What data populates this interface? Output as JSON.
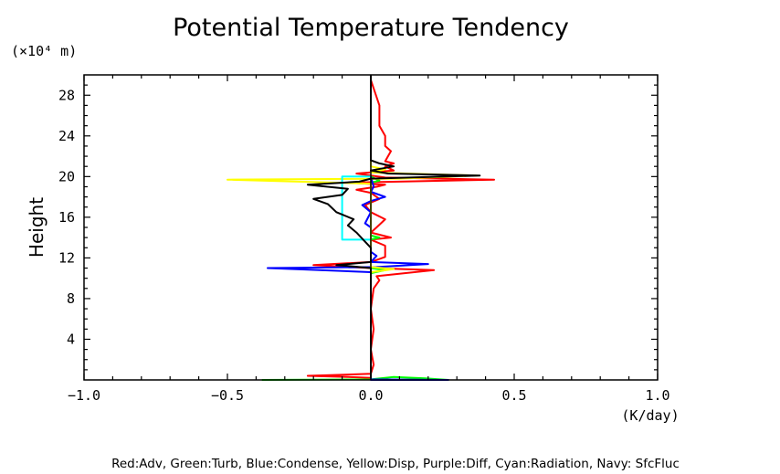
{
  "chart_data": {
    "type": "line",
    "title": "Potential Temperature Tendency",
    "xlabel": "(K/day)",
    "ylabel": "Height",
    "yunit": "(×10⁴ m)",
    "xlim": [
      -1.0,
      1.0
    ],
    "ylim": [
      0,
      30
    ],
    "xticks": [
      -1.0,
      -0.5,
      0.0,
      0.5,
      1.0
    ],
    "xtick_labels": [
      "−1.0",
      "−0.5",
      "0.0",
      "0.5",
      "1.0"
    ],
    "yticks": [
      4,
      8,
      12,
      16,
      20,
      24,
      28
    ],
    "ytick_labels": [
      "4",
      "8",
      "12",
      "16",
      "20",
      "24",
      "28"
    ],
    "legend_text": "Red:Adv, Green:Turb, Blue:Condense, Yellow:Disp, Purple:Diff, Cyan:Radiation, Navy: SfcFluc",
    "series": [
      {
        "color": "#ff0000",
        "points": [
          [
            0.0,
            0.2
          ],
          [
            -0.08,
            0.3
          ],
          [
            -0.22,
            0.4
          ],
          [
            0.0,
            0.6
          ],
          [
            0.01,
            1.5
          ],
          [
            0.0,
            3
          ],
          [
            0.01,
            5
          ],
          [
            0.0,
            7
          ],
          [
            0.01,
            9
          ],
          [
            0.03,
            9.8
          ],
          [
            0.02,
            10.2
          ],
          [
            0.22,
            10.8
          ],
          [
            0.0,
            11
          ],
          [
            -0.2,
            11.3
          ],
          [
            0.0,
            11.6
          ],
          [
            0.05,
            12.1
          ],
          [
            0.05,
            13.2
          ],
          [
            0.0,
            13.8
          ],
          [
            0.07,
            14.0
          ],
          [
            0.0,
            14.5
          ],
          [
            0.02,
            15
          ],
          [
            0.05,
            15.8
          ],
          [
            0.0,
            16.5
          ],
          [
            -0.02,
            17.2
          ],
          [
            0.03,
            17.8
          ],
          [
            0.0,
            18.4
          ],
          [
            -0.05,
            18.7
          ],
          [
            0.02,
            19.0
          ],
          [
            0.05,
            19.2
          ],
          [
            -0.08,
            19.4
          ],
          [
            0.43,
            19.7
          ],
          [
            0.05,
            19.9
          ],
          [
            -0.05,
            20.3
          ],
          [
            0.08,
            20.6
          ],
          [
            0.05,
            21.0
          ],
          [
            0.08,
            21.3
          ],
          [
            0.05,
            21.5
          ],
          [
            0.06,
            22.0
          ],
          [
            0.07,
            22.5
          ],
          [
            0.05,
            23
          ],
          [
            0.05,
            24
          ],
          [
            0.03,
            25
          ],
          [
            0.03,
            27
          ],
          [
            0.0,
            29.5
          ]
        ]
      },
      {
        "color": "#00ff00",
        "points": [
          [
            -0.38,
            0.0
          ],
          [
            0.0,
            0.05
          ],
          [
            0.08,
            0.3
          ],
          [
            0.19,
            0.15
          ],
          [
            0.27,
            0.0
          ],
          [
            0.0,
            0.05
          ],
          [
            0.0,
            10.5
          ],
          [
            0.05,
            10.8
          ],
          [
            0.0,
            11.0
          ],
          [
            0.0,
            13.8
          ],
          [
            0.03,
            14.0
          ],
          [
            0.0,
            14.2
          ],
          [
            0.0,
            19.4
          ],
          [
            0.03,
            19.6
          ],
          [
            0.0,
            20.0
          ]
        ]
      },
      {
        "color": "#0000ff",
        "points": [
          [
            0.0,
            0.05
          ],
          [
            0.27,
            0.0
          ],
          [
            0.0,
            0.0
          ],
          [
            0.0,
            10.6
          ],
          [
            -0.36,
            11.0
          ],
          [
            0.02,
            11.1
          ],
          [
            0.2,
            11.4
          ],
          [
            0.0,
            11.6
          ],
          [
            0.02,
            12.2
          ],
          [
            0.0,
            12.6
          ],
          [
            0.0,
            15.0
          ],
          [
            -0.02,
            15.4
          ],
          [
            0.0,
            16.5
          ],
          [
            -0.03,
            17.2
          ],
          [
            0.0,
            17.6
          ],
          [
            0.05,
            18.0
          ],
          [
            0.0,
            18.5
          ],
          [
            0.01,
            19.0
          ],
          [
            0.0,
            20.0
          ]
        ]
      },
      {
        "color": "#ffff00",
        "points": [
          [
            0.0,
            10.6
          ],
          [
            0.08,
            10.9
          ],
          [
            0.0,
            11.1
          ],
          [
            0.0,
            19.3
          ],
          [
            -0.5,
            19.7
          ],
          [
            0.1,
            19.8
          ],
          [
            0.37,
            20.1
          ],
          [
            0.0,
            20.4
          ],
          [
            0.05,
            20.7
          ],
          [
            0.0,
            21.0
          ],
          [
            0.0,
            30.0
          ]
        ]
      },
      {
        "color": "#00ffff",
        "points": [
          [
            0.0,
            13.8
          ],
          [
            -0.1,
            13.8
          ],
          [
            -0.1,
            20.0
          ],
          [
            0.0,
            20.0
          ]
        ]
      },
      {
        "color": "#000000",
        "points": [
          [
            0.0,
            0.2
          ],
          [
            0.0,
            10.5
          ],
          [
            0.0,
            11.0
          ],
          [
            -0.12,
            11.3
          ],
          [
            0.0,
            11.6
          ],
          [
            0.0,
            13.0
          ],
          [
            -0.05,
            14.5
          ],
          [
            -0.08,
            15.2
          ],
          [
            -0.06,
            15.8
          ],
          [
            -0.12,
            16.5
          ],
          [
            -0.15,
            17.3
          ],
          [
            -0.2,
            17.8
          ],
          [
            -0.1,
            18.2
          ],
          [
            -0.08,
            18.8
          ],
          [
            -0.22,
            19.2
          ],
          [
            -0.04,
            19.5
          ],
          [
            0.0,
            19.8
          ],
          [
            0.38,
            20.1
          ],
          [
            0.06,
            20.3
          ],
          [
            0.0,
            20.6
          ],
          [
            0.08,
            21.0
          ],
          [
            0.03,
            21.3
          ],
          [
            0.0,
            21.6
          ],
          [
            0.0,
            30.0
          ]
        ]
      }
    ]
  }
}
